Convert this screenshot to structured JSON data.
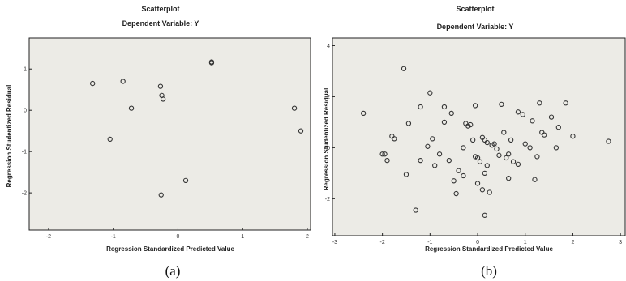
{
  "chart_data": [
    {
      "type": "scatter",
      "title": "Scatterplot",
      "subtitle": "Dependent Variable: Y",
      "xlabel": "Regression Standardized Predicted Value",
      "ylabel": "Regression Studentized Residual",
      "xlim": [
        -2.3,
        2.05
      ],
      "ylim": [
        -2.9,
        1.75
      ],
      "xticks": [
        -2,
        -1,
        0,
        1,
        2
      ],
      "yticks": [
        -2,
        -1,
        0,
        1
      ],
      "xtick_labels": [
        "-2",
        "-1",
        "0",
        "1",
        "2"
      ],
      "ytick_labels": [
        "-2",
        "-1",
        "0",
        "1"
      ],
      "caption": "(a)",
      "points": [
        {
          "x": -1.32,
          "y": 0.65
        },
        {
          "x": -0.85,
          "y": 0.7
        },
        {
          "x": -0.72,
          "y": 0.05
        },
        {
          "x": -1.05,
          "y": -0.7
        },
        {
          "x": -0.27,
          "y": 0.58
        },
        {
          "x": -0.25,
          "y": 0.36
        },
        {
          "x": -0.23,
          "y": 0.27
        },
        {
          "x": -0.26,
          "y": -2.05
        },
        {
          "x": 0.12,
          "y": -1.7
        },
        {
          "x": 0.52,
          "y": 1.17
        },
        {
          "x": 0.52,
          "y": 1.15
        },
        {
          "x": 1.8,
          "y": 0.05
        },
        {
          "x": 1.9,
          "y": -0.5
        }
      ]
    },
    {
      "type": "scatter",
      "title": "Scatterplot",
      "subtitle": "Dependent Variable: Y",
      "xlabel": "Regression Standardized Predicted Value",
      "ylabel": "Regression Studentized Residual",
      "xlim": [
        -3.05,
        3.1
      ],
      "ylim": [
        -3.45,
        4.3
      ],
      "xticks": [
        -3,
        -2,
        -1,
        0,
        1,
        2,
        3
      ],
      "yticks": [
        -2,
        0,
        2,
        4
      ],
      "xtick_labels": [
        "-3",
        "-2",
        "-1",
        "0",
        "1",
        "2",
        "3"
      ],
      "ytick_labels": [
        "-2",
        "0",
        "2",
        "4"
      ],
      "caption": "(b)",
      "points": [
        {
          "x": -2.4,
          "y": 1.35
        },
        {
          "x": -1.9,
          "y": -0.5
        },
        {
          "x": -2.0,
          "y": -0.25
        },
        {
          "x": -1.95,
          "y": -0.25
        },
        {
          "x": -1.8,
          "y": 0.45
        },
        {
          "x": -1.75,
          "y": 0.35
        },
        {
          "x": -1.55,
          "y": 3.1
        },
        {
          "x": -1.5,
          "y": -1.05
        },
        {
          "x": -1.45,
          "y": 0.95
        },
        {
          "x": -1.3,
          "y": -2.45
        },
        {
          "x": -1.2,
          "y": 1.6
        },
        {
          "x": -1.2,
          "y": -0.5
        },
        {
          "x": -1.05,
          "y": 0.05
        },
        {
          "x": -1.0,
          "y": 2.15
        },
        {
          "x": -0.95,
          "y": 0.35
        },
        {
          "x": -0.9,
          "y": -0.7
        },
        {
          "x": -0.8,
          "y": -0.25
        },
        {
          "x": -0.7,
          "y": 1.6
        },
        {
          "x": -0.7,
          "y": 1.0
        },
        {
          "x": -0.6,
          "y": -0.5
        },
        {
          "x": -0.55,
          "y": 1.35
        },
        {
          "x": -0.5,
          "y": -1.3
        },
        {
          "x": -0.45,
          "y": -1.8
        },
        {
          "x": -0.4,
          "y": -0.9
        },
        {
          "x": -0.3,
          "y": -1.1
        },
        {
          "x": -0.3,
          "y": 0.0
        },
        {
          "x": -0.25,
          "y": 0.95
        },
        {
          "x": -0.2,
          "y": 0.85
        },
        {
          "x": -0.15,
          "y": 0.9
        },
        {
          "x": -0.1,
          "y": 0.3
        },
        {
          "x": -0.05,
          "y": 1.65
        },
        {
          "x": -0.05,
          "y": -0.35
        },
        {
          "x": 0.0,
          "y": -0.4
        },
        {
          "x": 0.0,
          "y": -1.4
        },
        {
          "x": 0.05,
          "y": -0.55
        },
        {
          "x": 0.1,
          "y": 0.4
        },
        {
          "x": 0.1,
          "y": -1.65
        },
        {
          "x": 0.15,
          "y": 0.3
        },
        {
          "x": 0.15,
          "y": -1.0
        },
        {
          "x": 0.2,
          "y": 0.2
        },
        {
          "x": 0.2,
          "y": -0.7
        },
        {
          "x": 0.25,
          "y": -1.75
        },
        {
          "x": 0.15,
          "y": -2.65
        },
        {
          "x": 0.3,
          "y": 0.1
        },
        {
          "x": 0.35,
          "y": 0.15
        },
        {
          "x": 0.4,
          "y": -0.05
        },
        {
          "x": 0.45,
          "y": -0.3
        },
        {
          "x": 0.5,
          "y": 1.7
        },
        {
          "x": 0.55,
          "y": 0.6
        },
        {
          "x": 0.6,
          "y": -0.4
        },
        {
          "x": 0.65,
          "y": -1.2
        },
        {
          "x": 0.65,
          "y": -0.25
        },
        {
          "x": 0.7,
          "y": 0.3
        },
        {
          "x": 0.75,
          "y": -0.55
        },
        {
          "x": 0.85,
          "y": 1.4
        },
        {
          "x": 0.85,
          "y": -0.65
        },
        {
          "x": 0.95,
          "y": 1.3
        },
        {
          "x": 1.0,
          "y": 0.15
        },
        {
          "x": 1.1,
          "y": 0.0
        },
        {
          "x": 1.15,
          "y": 1.05
        },
        {
          "x": 1.2,
          "y": -1.25
        },
        {
          "x": 1.25,
          "y": -0.35
        },
        {
          "x": 1.3,
          "y": 1.75
        },
        {
          "x": 1.35,
          "y": 0.6
        },
        {
          "x": 1.4,
          "y": 0.5
        },
        {
          "x": 1.55,
          "y": 1.2
        },
        {
          "x": 1.65,
          "y": 0.0
        },
        {
          "x": 1.7,
          "y": 0.8
        },
        {
          "x": 1.85,
          "y": 1.75
        },
        {
          "x": 2.0,
          "y": 0.45
        },
        {
          "x": 2.75,
          "y": 0.25
        }
      ]
    }
  ]
}
